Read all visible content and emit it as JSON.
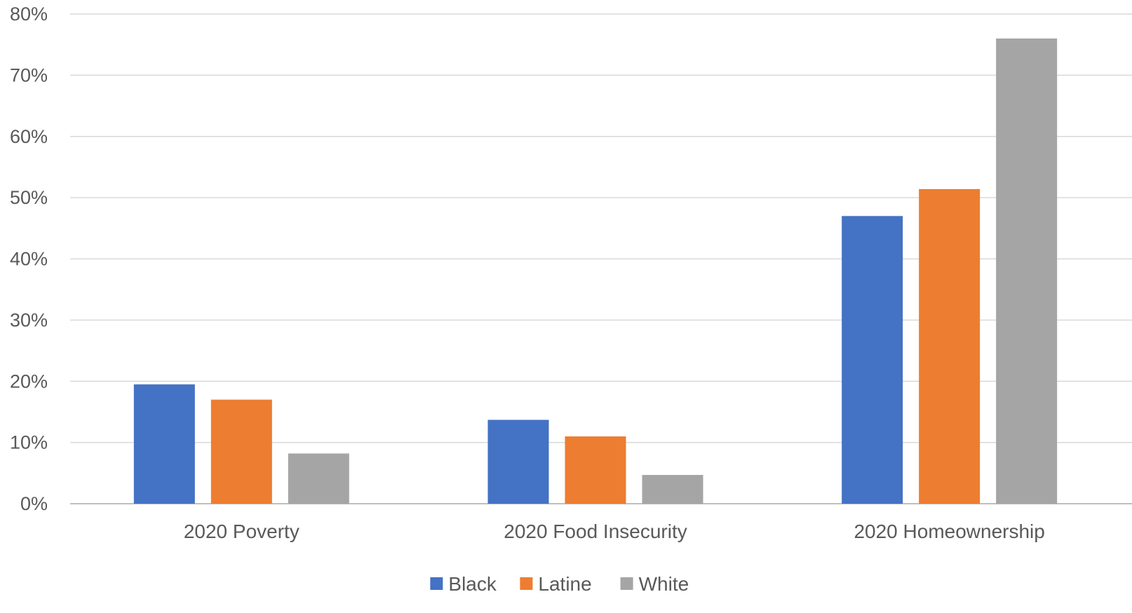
{
  "chart_data": {
    "type": "bar",
    "categories": [
      "2020 Poverty",
      "2020 Food Insecurity",
      "2020 Homeownership"
    ],
    "series": [
      {
        "name": "Black",
        "color": "#4472C4",
        "values": [
          19.5,
          13.7,
          47.0
        ]
      },
      {
        "name": "Latine",
        "color": "#ED7D31",
        "values": [
          17.0,
          11.0,
          51.4
        ]
      },
      {
        "name": "White",
        "color": "#A5A5A5",
        "values": [
          8.2,
          4.7,
          76.0
        ]
      }
    ],
    "ylim": [
      0,
      80
    ],
    "yticks": [
      "0%",
      "10%",
      "20%",
      "30%",
      "40%",
      "50%",
      "60%",
      "70%",
      "80%"
    ],
    "grid": true,
    "legend_position": "bottom"
  }
}
